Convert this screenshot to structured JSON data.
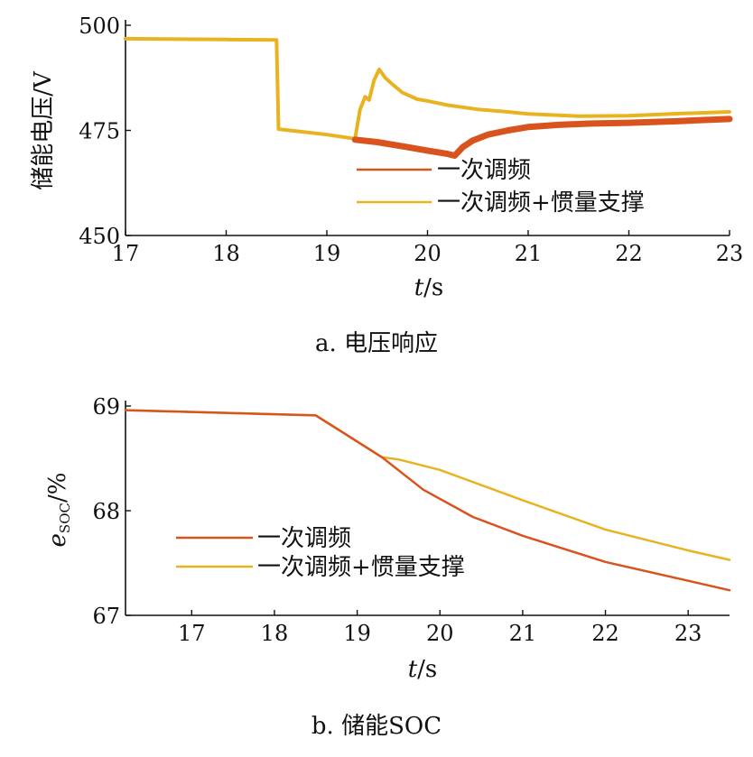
{
  "colors": {
    "primary": "#d9531e",
    "inertia": "#e8b321",
    "axis": "#111111"
  },
  "chart_data": [
    {
      "type": "line",
      "caption": "a. 电压响应",
      "xlabel_var": "t",
      "xlabel_unit": "/s",
      "ylabel": "储能电压/V",
      "xlim": [
        17,
        23
      ],
      "ylim": [
        450,
        500
      ],
      "x_ticks": [
        "17",
        "18",
        "19",
        "20",
        "21",
        "22",
        "23"
      ],
      "y_ticks": [
        "450",
        "475",
        "500"
      ],
      "series": [
        {
          "name": "一次调频",
          "color": "#d9531e",
          "points": [
            [
              19.28,
              472.8
            ],
            [
              19.5,
              472.2
            ],
            [
              19.8,
              471.0
            ],
            [
              20.0,
              470.2
            ],
            [
              20.2,
              469.4
            ],
            [
              20.27,
              469.0
            ],
            [
              20.35,
              471.0
            ],
            [
              20.45,
              472.6
            ],
            [
              20.6,
              474.0
            ],
            [
              20.8,
              475.0
            ],
            [
              21.0,
              475.8
            ],
            [
              21.3,
              476.3
            ],
            [
              21.6,
              476.6
            ],
            [
              22.0,
              476.8
            ],
            [
              22.5,
              477.2
            ],
            [
              23.0,
              477.7
            ]
          ]
        },
        {
          "name": "一次调频+惯量支撑",
          "color": "#e8b321",
          "points": [
            [
              17.0,
              496.8
            ],
            [
              17.5,
              496.7
            ],
            [
              18.0,
              496.6
            ],
            [
              18.5,
              496.5
            ],
            [
              18.52,
              475.3
            ],
            [
              18.7,
              474.8
            ],
            [
              19.0,
              474.0
            ],
            [
              19.28,
              473.0
            ],
            [
              19.33,
              480.0
            ],
            [
              19.38,
              483.0
            ],
            [
              19.42,
              482.2
            ],
            [
              19.47,
              487.0
            ],
            [
              19.52,
              489.5
            ],
            [
              19.58,
              487.5
            ],
            [
              19.65,
              486.0
            ],
            [
              19.75,
              484.0
            ],
            [
              19.9,
              482.4
            ],
            [
              20.0,
              482.0
            ],
            [
              20.2,
              481.0
            ],
            [
              20.5,
              480.0
            ],
            [
              20.8,
              479.4
            ],
            [
              21.0,
              478.9
            ],
            [
              21.5,
              478.4
            ],
            [
              22.0,
              478.5
            ],
            [
              22.5,
              479.0
            ],
            [
              23.0,
              479.4
            ]
          ]
        }
      ]
    },
    {
      "type": "line",
      "caption": "b. 储能SOC",
      "xlabel_var": "t",
      "xlabel_unit": "/s",
      "ylabel_var": "e",
      "ylabel_sub": "SOC",
      "ylabel_unit": "/%",
      "xlim": [
        16.2,
        23.5
      ],
      "ylim": [
        67,
        69
      ],
      "x_ticks": [
        "17",
        "18",
        "19",
        "20",
        "21",
        "22",
        "23"
      ],
      "y_ticks": [
        "67",
        "68",
        "69"
      ],
      "series": [
        {
          "name": "一次调频",
          "color": "#d9531e",
          "points": [
            [
              16.2,
              68.96
            ],
            [
              18.5,
              68.91
            ],
            [
              19.3,
              68.51
            ],
            [
              19.8,
              68.2
            ],
            [
              20.4,
              67.94
            ],
            [
              21.0,
              67.76
            ],
            [
              22.0,
              67.51
            ],
            [
              23.0,
              67.33
            ],
            [
              23.5,
              67.24
            ]
          ]
        },
        {
          "name": "一次调频+惯量支撑",
          "color": "#e8b321",
          "points": [
            [
              16.2,
              68.96
            ],
            [
              18.5,
              68.91
            ],
            [
              19.3,
              68.51
            ],
            [
              19.5,
              68.49
            ],
            [
              20.0,
              68.39
            ],
            [
              21.0,
              68.1
            ],
            [
              22.0,
              67.82
            ],
            [
              23.0,
              67.62
            ],
            [
              23.5,
              67.53
            ]
          ]
        }
      ]
    }
  ]
}
